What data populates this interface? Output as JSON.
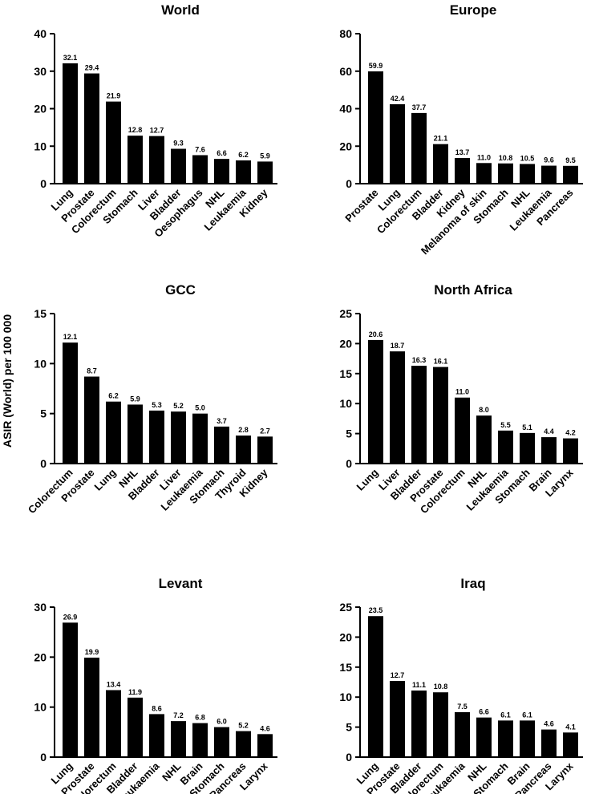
{
  "figure": {
    "ylabel": "ASIR (World) per 100 000"
  },
  "colors": {
    "bar": "#000000",
    "axis": "#000000",
    "text": "#000000"
  },
  "chart_data": [
    {
      "type": "bar",
      "title": "World",
      "categories": [
        "Lung",
        "Prostate",
        "Colorectum",
        "Stomach",
        "Liver",
        "Bladder",
        "Oesophagus",
        "NHL",
        "Leukaemia",
        "Kidney"
      ],
      "values": [
        32.1,
        29.4,
        21.9,
        12.8,
        12.7,
        9.3,
        7.6,
        6.6,
        6.2,
        5.9
      ],
      "labels": [
        "32.1",
        "29.4",
        "21.9",
        "12.8",
        "12.7",
        "9.3",
        "7.6",
        "6.6",
        "6.2",
        "5.9"
      ],
      "ylim": [
        0,
        40
      ],
      "yticks": [
        "0",
        "10",
        "20",
        "30",
        "40"
      ]
    },
    {
      "type": "bar",
      "title": "Europe",
      "categories": [
        "Prostate",
        "Lung",
        "Colorectum",
        "Bladder",
        "Kidney",
        "Melanoma of skin",
        "Stomach",
        "NHL",
        "Leukaemia",
        "Pancreas"
      ],
      "values": [
        59.9,
        42.4,
        37.7,
        21.1,
        13.7,
        11.0,
        10.8,
        10.5,
        9.6,
        9.5
      ],
      "labels": [
        "59.9",
        "42.4",
        "37.7",
        "21.1",
        "13.7",
        "11.0",
        "10.8",
        "10.5",
        "9.6",
        "9.5"
      ],
      "ylim": [
        0,
        80
      ],
      "yticks": [
        "0",
        "20",
        "40",
        "60",
        "80"
      ]
    },
    {
      "type": "bar",
      "title": "GCC",
      "categories": [
        "Colorectum",
        "Prostate",
        "Lung",
        "NHL",
        "Bladder",
        "Liver",
        "Leukaemia",
        "Stomach",
        "Thyroid",
        "Kidney"
      ],
      "values": [
        12.1,
        8.7,
        6.2,
        5.9,
        5.3,
        5.2,
        5.0,
        3.7,
        2.8,
        2.7
      ],
      "labels": [
        "12.1",
        "8.7",
        "6.2",
        "5.9",
        "5.3",
        "5.2",
        "5.0",
        "3.7",
        "2.8",
        "2.7"
      ],
      "ylim": [
        0,
        15
      ],
      "yticks": [
        "0",
        "5",
        "10",
        "15"
      ]
    },
    {
      "type": "bar",
      "title": "North Africa",
      "categories": [
        "Lung",
        "Liver",
        "Bladder",
        "Prostate",
        "Colorectum",
        "NHL",
        "Leukaemia",
        "Stomach",
        "Brain",
        "Larynx"
      ],
      "values": [
        20.6,
        18.7,
        16.3,
        16.1,
        11.0,
        8.0,
        5.5,
        5.1,
        4.4,
        4.2
      ],
      "labels": [
        "20.6",
        "18.7",
        "16.3",
        "16.1",
        "11.0",
        "8.0",
        "5.5",
        "5.1",
        "4.4",
        "4.2"
      ],
      "ylim": [
        0,
        25
      ],
      "yticks": [
        "0",
        "5",
        "10",
        "15",
        "20",
        "25"
      ]
    },
    {
      "type": "bar",
      "title": "Levant",
      "categories": [
        "Lung",
        "Prostate",
        "Colorectum",
        "Bladder",
        "Leukaemia",
        "NHL",
        "Brain",
        "Stomach",
        "Pancreas",
        "Larynx"
      ],
      "values": [
        26.9,
        19.9,
        13.4,
        11.9,
        8.6,
        7.2,
        6.8,
        6.0,
        5.2,
        4.6
      ],
      "labels": [
        "26.9",
        "19.9",
        "13.4",
        "11.9",
        "8.6",
        "7.2",
        "6.8",
        "6.0",
        "5.2",
        "4.6"
      ],
      "ylim": [
        0,
        30
      ],
      "yticks": [
        "0",
        "10",
        "20",
        "30"
      ]
    },
    {
      "type": "bar",
      "title": "Iraq",
      "categories": [
        "Lung",
        "Prostate",
        "Bladder",
        "Colorectum",
        "Leukaemia",
        "NHL",
        "Stomach",
        "Brain",
        "Pancreas",
        "Larynx"
      ],
      "values": [
        23.5,
        12.7,
        11.1,
        10.8,
        7.5,
        6.6,
        6.1,
        6.1,
        4.6,
        4.1
      ],
      "labels": [
        "23.5",
        "12.7",
        "11.1",
        "10.8",
        "7.5",
        "6.6",
        "6.1",
        "6.1",
        "4.6",
        "4.1"
      ],
      "ylim": [
        0,
        25
      ],
      "yticks": [
        "0",
        "5",
        "10",
        "15",
        "20",
        "25"
      ]
    }
  ]
}
